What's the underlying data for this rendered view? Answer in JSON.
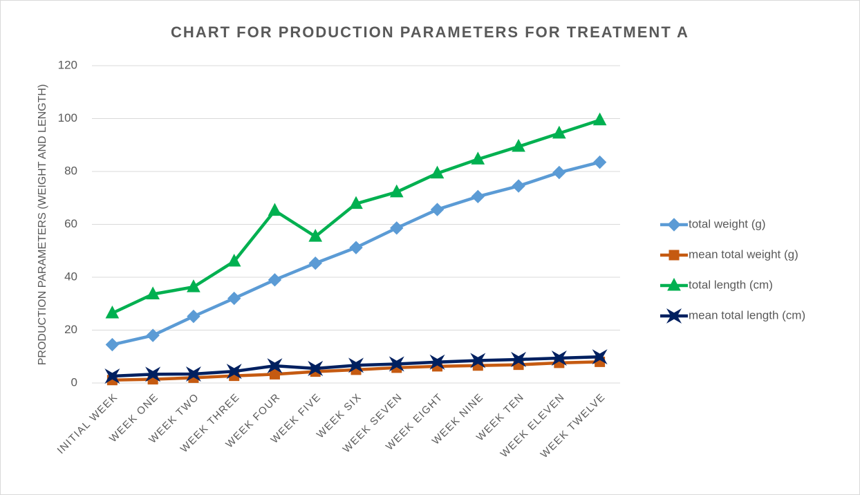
{
  "chart_data": {
    "type": "line",
    "title": "CHART FOR PRODUCTION PARAMETERS FOR TREATMENT A",
    "y_label": "PRODUCTION PARAMETERS (WEIGHT AND LENGTH)",
    "categories": [
      "INITIAL WEEK",
      "WEEK ONE",
      "WEEK TWO",
      "WEEK THREE",
      "WEEK FOUR",
      "WEEK FIVE",
      "WEEK SIX",
      "WEEK SEVEN",
      "WEEK EIGHT",
      "WEEK NINE",
      "WEEK TEN",
      "WEEK ELEVEN",
      "WEEK TWELVE"
    ],
    "series": [
      {
        "name": "total weight (g)",
        "color": "#5b9bd5",
        "marker": "diamond",
        "values": [
          14.5,
          18,
          25.2,
          32,
          39,
          45.3,
          51.2,
          58.6,
          65.6,
          70.5,
          74.5,
          79.6,
          83.5
        ]
      },
      {
        "name": "mean total weight (g)",
        "color": "#c55a11",
        "marker": "square",
        "values": [
          1.1,
          1.4,
          2,
          2.7,
          3.3,
          4.3,
          5,
          5.8,
          6.3,
          6.6,
          6.9,
          7.6,
          8
        ]
      },
      {
        "name": "total length (cm)",
        "color": "#00b050",
        "marker": "triangle",
        "values": [
          26.4,
          33.6,
          36.3,
          46,
          65.2,
          55.4,
          67.8,
          72.2,
          79.3,
          84.6,
          89.4,
          94.4,
          99.4
        ]
      },
      {
        "name": "mean total length (cm)",
        "color": "#002060",
        "marker": "star",
        "values": [
          2.6,
          3.3,
          3.4,
          4.4,
          6.5,
          5.5,
          6.7,
          7.2,
          7.9,
          8.5,
          8.9,
          9.4,
          9.9
        ]
      }
    ],
    "ylim": [
      0,
      120
    ],
    "yticks": [
      0,
      20,
      40,
      60,
      80,
      100,
      120
    ],
    "grid": true,
    "legend": "right"
  }
}
